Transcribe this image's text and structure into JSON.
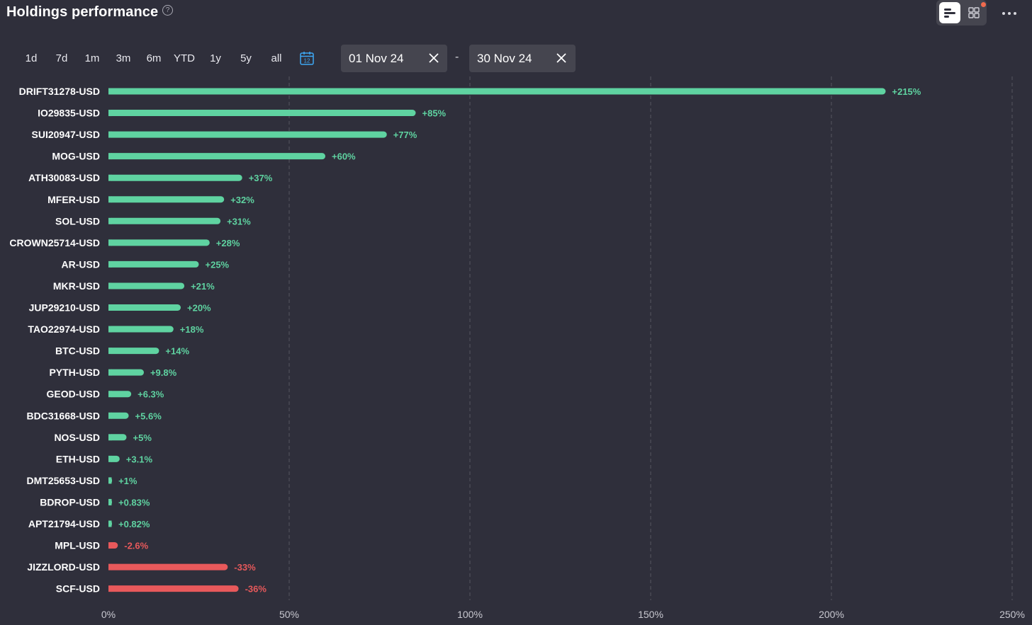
{
  "header": {
    "title": "Holdings performance",
    "help_glyph": "?",
    "more_icon": "more-horizontal-icon"
  },
  "periods": [
    "1d",
    "7d",
    "1m",
    "3m",
    "6m",
    "YTD",
    "1y",
    "5y",
    "all"
  ],
  "calendar": {
    "icon": "calendar-icon",
    "day": "12"
  },
  "date_range": {
    "start": "01 Nov 24",
    "end": "30 Nov 24",
    "separator": "-"
  },
  "colors": {
    "background": "#2f2f3b",
    "positive": "#5fd3a1",
    "negative": "#e8595b",
    "grid": "#55555f",
    "accent": "#3ea8f5"
  },
  "chart_data": {
    "type": "bar",
    "orientation": "horizontal",
    "title": "Holdings performance",
    "categories": [
      "DRIFT31278-USD",
      "IO29835-USD",
      "SUI20947-USD",
      "MOG-USD",
      "ATH30083-USD",
      "MFER-USD",
      "SOL-USD",
      "CROWN25714-USD",
      "AR-USD",
      "MKR-USD",
      "JUP29210-USD",
      "TAO22974-USD",
      "BTC-USD",
      "PYTH-USD",
      "GEOD-USD",
      "BDC31668-USD",
      "NOS-USD",
      "ETH-USD",
      "DMT25653-USD",
      "BDROP-USD",
      "APT21794-USD",
      "MPL-USD",
      "JIZZLORD-USD",
      "SCF-USD"
    ],
    "values": [
      215,
      85,
      77,
      60,
      37,
      32,
      31,
      28,
      25,
      21,
      20,
      18,
      14,
      9.8,
      6.3,
      5.6,
      5,
      3.1,
      1,
      0.83,
      0.82,
      -2.6,
      -33,
      -36
    ],
    "value_labels": [
      "+215%",
      "+85%",
      "+77%",
      "+60%",
      "+37%",
      "+32%",
      "+31%",
      "+28%",
      "+25%",
      "+21%",
      "+20%",
      "+18%",
      "+14%",
      "+9.8%",
      "+6.3%",
      "+5.6%",
      "+5%",
      "+3.1%",
      "+1%",
      "+0.83%",
      "+0.82%",
      "-2.6%",
      "-33%",
      "-36%"
    ],
    "xlim": [
      0,
      250
    ],
    "xticks": [
      0,
      50,
      100,
      150,
      200,
      250
    ],
    "xtick_labels": [
      "0%",
      "50%",
      "100%",
      "150%",
      "200%",
      "250%"
    ],
    "grid": "vertical-dashed",
    "note": "negative values drawn as bars of absolute length in red"
  }
}
